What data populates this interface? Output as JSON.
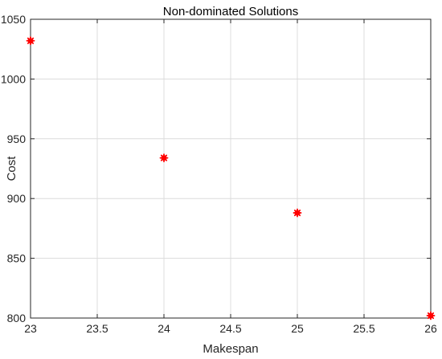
{
  "chart_data": {
    "type": "scatter",
    "title": "Non-dominated Solutions",
    "xlabel": "Makespan",
    "ylabel": "Cost",
    "xlim": [
      23,
      26
    ],
    "ylim": [
      800,
      1050
    ],
    "xticks": [
      23,
      23.5,
      24,
      24.5,
      25,
      25.5,
      26
    ],
    "xtick_labels": [
      "23",
      "23.5",
      "24",
      "24.5",
      "25",
      "25.5",
      "26"
    ],
    "yticks": [
      800,
      850,
      900,
      950,
      1000,
      1050
    ],
    "ytick_labels": [
      "800",
      "850",
      "900",
      "950",
      "1000",
      "1050"
    ],
    "grid": true,
    "marker": "asterisk",
    "marker_color": "#ff0000",
    "series": [
      {
        "points": [
          {
            "x": 23,
            "y": 1032
          },
          {
            "x": 24,
            "y": 934
          },
          {
            "x": 25,
            "y": 888
          },
          {
            "x": 26,
            "y": 802
          }
        ]
      }
    ]
  }
}
